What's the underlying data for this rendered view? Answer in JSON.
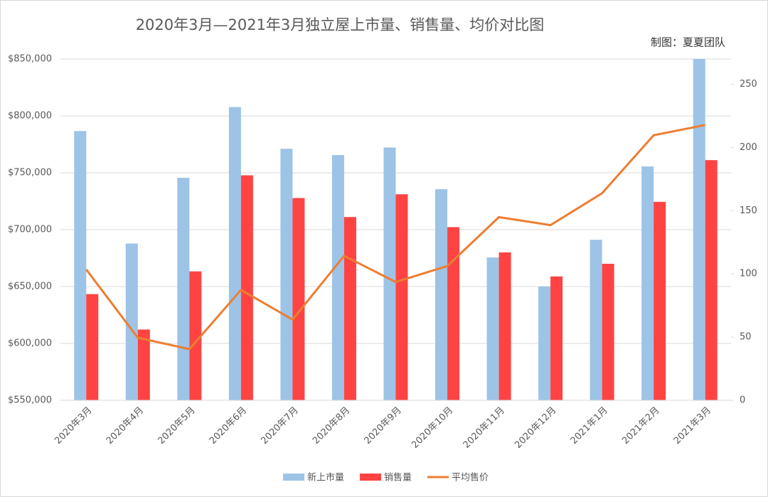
{
  "chart_data": {
    "type": "bar_line",
    "title": "2020年3月—2021年3月独立屋上市量、销售量、均价对比图",
    "annotation": "制图：夏夏团队",
    "categories": [
      "2020年3月",
      "2020年4月",
      "2020年5月",
      "2020年6月",
      "2020年7月",
      "2020年8月",
      "2020年9月",
      "2020年10月",
      "2020年11月",
      "2020年12月",
      "2021年1月",
      "2021年2月",
      "2021年3月"
    ],
    "series": [
      {
        "name": "新上市量",
        "type": "bar",
        "axis": "y2",
        "color": "#9dc3e6",
        "values": [
          213,
          124,
          176,
          232,
          199,
          194,
          200,
          167,
          113,
          90,
          127,
          185,
          270
        ]
      },
      {
        "name": "销售量",
        "type": "bar",
        "axis": "y2",
        "color": "#ff4343",
        "values": [
          84,
          56,
          102,
          178,
          160,
          145,
          163,
          137,
          117,
          98,
          108,
          157,
          190
        ]
      },
      {
        "name": "平均售价",
        "type": "line",
        "axis": "y",
        "color": "#ed7d31",
        "values": [
          665000,
          605000,
          595000,
          647000,
          621000,
          677000,
          654000,
          668000,
          711000,
          704000,
          732000,
          783000,
          792000
        ]
      }
    ],
    "ylim": [
      550000,
      850000
    ],
    "yticks": [
      {
        "value": 550000,
        "label": "$550,000"
      },
      {
        "value": 600000,
        "label": "$600,000"
      },
      {
        "value": 650000,
        "label": "$650,000"
      },
      {
        "value": 700000,
        "label": "$700,000"
      },
      {
        "value": 750000,
        "label": "$750,000"
      },
      {
        "value": 800000,
        "label": "$800,000"
      },
      {
        "value": 850000,
        "label": "$850,000"
      }
    ],
    "y2lim": [
      0,
      270
    ],
    "y2ticks": [
      0,
      50,
      100,
      150,
      200,
      250
    ],
    "grid": true,
    "legend": "bottom"
  }
}
